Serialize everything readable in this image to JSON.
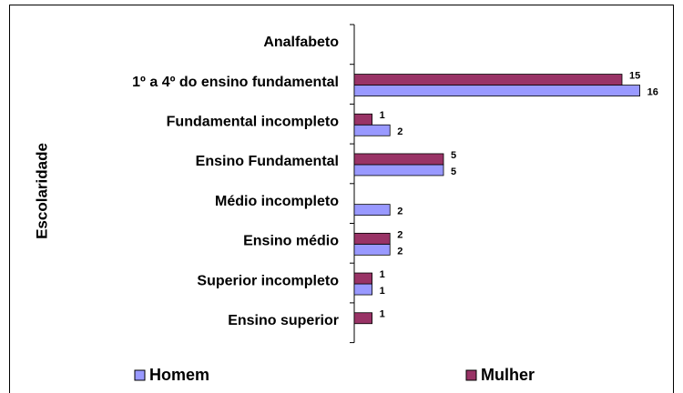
{
  "chart_data": {
    "type": "bar",
    "orientation": "horizontal",
    "y_label": "Escolaridade",
    "categories": [
      "Analfabeto",
      "1º a 4º do ensino fundamental",
      "Fundamental incompleto",
      "Ensino Fundamental",
      "Médio incompleto",
      "Ensino médio",
      "Superior incompleto",
      "Ensino superior"
    ],
    "series": [
      {
        "name": "Homem",
        "color": "#9999ff",
        "values": [
          null,
          16,
          2,
          5,
          2,
          2,
          1,
          null
        ]
      },
      {
        "name": "Mulher",
        "color": "#993366",
        "values": [
          null,
          15,
          1,
          5,
          null,
          2,
          1,
          1
        ]
      }
    ],
    "legend": "bottom"
  }
}
